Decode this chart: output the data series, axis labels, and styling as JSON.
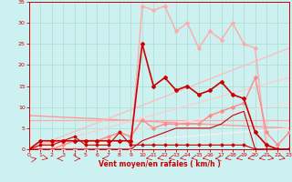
{
  "background_color": "#cdf0f0",
  "grid_color": "#aaddcc",
  "xlabel": "Vent moyen/en rafales ( km/h )",
  "xlim": [
    0,
    23
  ],
  "ylim": [
    0,
    35
  ],
  "yticks": [
    0,
    5,
    10,
    15,
    20,
    25,
    30,
    35
  ],
  "xticks": [
    0,
    1,
    2,
    3,
    4,
    5,
    6,
    7,
    8,
    9,
    10,
    11,
    12,
    13,
    14,
    15,
    16,
    17,
    18,
    19,
    20,
    21,
    22,
    23
  ],
  "line_dark_main": {
    "x": [
      0,
      1,
      2,
      3,
      4,
      5,
      6,
      7,
      8,
      9,
      10,
      11,
      12,
      13,
      14,
      15,
      16,
      17,
      18,
      19,
      20,
      21,
      22,
      23
    ],
    "y": [
      0,
      2,
      2,
      2,
      2,
      2,
      2,
      2,
      2,
      2,
      25,
      15,
      17,
      14,
      15,
      13,
      14,
      16,
      13,
      12,
      4,
      1,
      0,
      0
    ],
    "color": "#cc0000",
    "lw": 1.2
  },
  "line_dark2": {
    "x": [
      0,
      1,
      2,
      3,
      4,
      5,
      6,
      7,
      8,
      9,
      10,
      11,
      12,
      13,
      14,
      15,
      16,
      17,
      18,
      19,
      20,
      21,
      22,
      23
    ],
    "y": [
      0,
      1,
      1,
      2,
      3,
      1,
      1,
      1,
      4,
      1,
      1,
      1,
      1,
      1,
      1,
      1,
      1,
      1,
      1,
      1,
      0,
      0,
      0,
      0
    ],
    "color": "#cc0000",
    "lw": 0.8
  },
  "line_dark3": {
    "x": [
      0,
      1,
      2,
      3,
      4,
      5,
      6,
      7,
      8,
      9,
      10,
      11,
      12,
      13,
      14,
      15,
      16,
      17,
      18,
      19,
      20,
      21,
      22,
      23
    ],
    "y": [
      0,
      0,
      0,
      0,
      0,
      0,
      0,
      0,
      0,
      0,
      2,
      3,
      4,
      5,
      5,
      5,
      5,
      6,
      8,
      9,
      0,
      0,
      0,
      0
    ],
    "color": "#cc0000",
    "lw": 0.8
  },
  "line_rafale_light": {
    "x": [
      0,
      1,
      2,
      3,
      4,
      5,
      6,
      7,
      8,
      9,
      10,
      11,
      12,
      13,
      14,
      15,
      16,
      17,
      18,
      19,
      20,
      21,
      22,
      23
    ],
    "y": [
      0,
      0,
      0,
      0,
      0,
      0,
      0,
      0,
      0,
      0,
      34,
      33,
      34,
      28,
      30,
      24,
      28,
      26,
      30,
      25,
      24,
      0,
      0,
      0
    ],
    "color": "#ffaaaa",
    "lw": 1.0
  },
  "line_moyen_light": {
    "x": [
      0,
      1,
      2,
      3,
      4,
      5,
      6,
      7,
      8,
      9,
      10,
      11,
      12,
      13,
      14,
      15,
      16,
      17,
      18,
      19,
      20,
      21,
      22,
      23
    ],
    "y": [
      0,
      0,
      0,
      1,
      2,
      2,
      2,
      3,
      4,
      3,
      7,
      5,
      6,
      6,
      6,
      6,
      8,
      9,
      10,
      11,
      17,
      4,
      1,
      4
    ],
    "color": "#ff8888",
    "lw": 1.0
  },
  "trend_lines": [
    {
      "x0": 0,
      "y0": 8,
      "x1": 23,
      "y1": 5,
      "color": "#ff9999",
      "lw": 1.0
    },
    {
      "x0": 0,
      "y0": 7,
      "x1": 23,
      "y1": 7,
      "color": "#ffaaaa",
      "lw": 0.9
    },
    {
      "x0": 0,
      "y0": 0,
      "x1": 23,
      "y1": 24,
      "color": "#ffbbbb",
      "lw": 0.9
    },
    {
      "x0": 0,
      "y0": 0,
      "x1": 23,
      "y1": 17,
      "color": "#ffcccc",
      "lw": 0.9
    },
    {
      "x0": 0,
      "y0": 0,
      "x1": 23,
      "y1": 11,
      "color": "#ffdddd",
      "lw": 0.8
    },
    {
      "x0": 0,
      "y0": 0,
      "x1": 23,
      "y1": 5,
      "color": "#ffeeee",
      "lw": 0.8
    }
  ]
}
